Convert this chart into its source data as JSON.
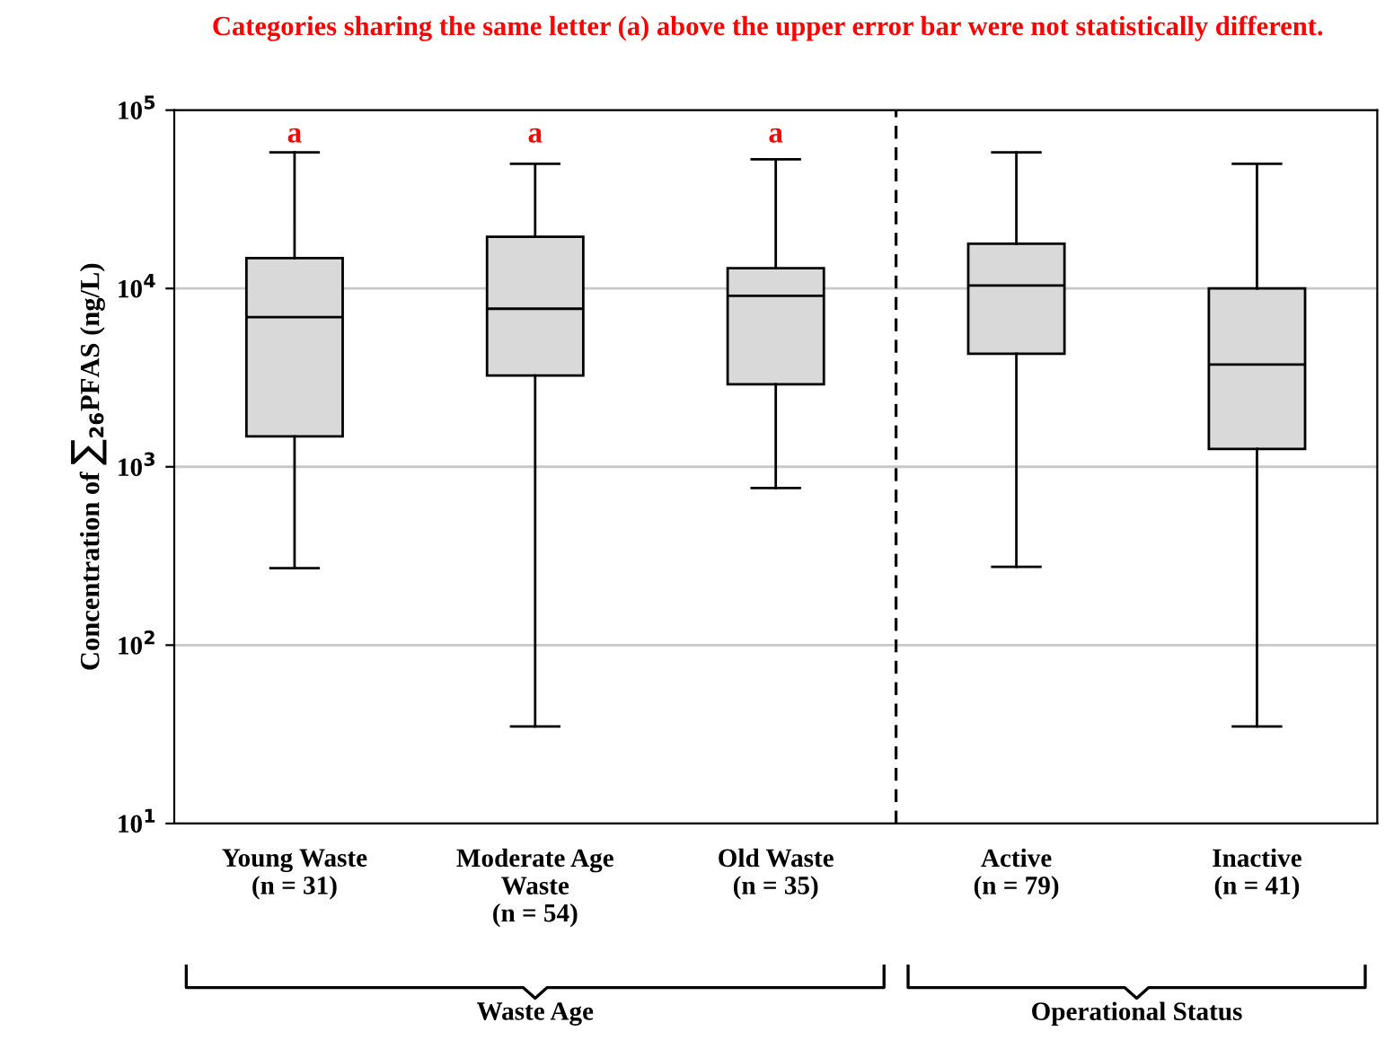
{
  "chart_data": {
    "type": "box",
    "title": "Categories sharing the same letter (a) above the upper error bar were not statistically different.",
    "ylabel": "Concentration of ∑$_{26}$PFAS (ng/L)",
    "categories": [
      "Young Waste\n(n = 31)",
      "Moderate Age\nWaste\n(n = 54)",
      "Old Waste\n(n = 35)",
      "Active\n(n = 79)",
      "Inactive\n(n = 41)"
    ],
    "color": "#d9d9d9",
    "boxes": [
      {
        "low": 270,
        "q1": 1480,
        "median": 6900,
        "q3": 14800,
        "high": 58000
      },
      {
        "low": 35,
        "q1": 3250,
        "median": 7700,
        "q3": 19500,
        "high": 50000
      },
      {
        "low": 760,
        "q1": 2900,
        "median": 9100,
        "q3": 13000,
        "high": 53000
      },
      {
        "low": 275,
        "q1": 4300,
        "median": 10400,
        "q3": 17800,
        "high": 58000
      },
      {
        "low": 35,
        "q1": 1260,
        "median": 3750,
        "q3": 10000,
        "high": 50000
      }
    ],
    "log": true,
    "ylim": [
      10,
      100000
    ],
    "yticks": [
      {
        "value": 10,
        "label": "10$^{1}$"
      },
      {
        "value": 100,
        "label": "10$^{2}$"
      },
      {
        "value": 1000,
        "label": "10$^{3}$"
      },
      {
        "value": 10000,
        "label": "10$^{4}$"
      },
      {
        "value": 100000,
        "label": "10$^{5}$"
      }
    ],
    "grid": "y",
    "annotations": [
      "a",
      "a",
      "a",
      "Waste Age",
      "Operational Status"
    ]
  }
}
